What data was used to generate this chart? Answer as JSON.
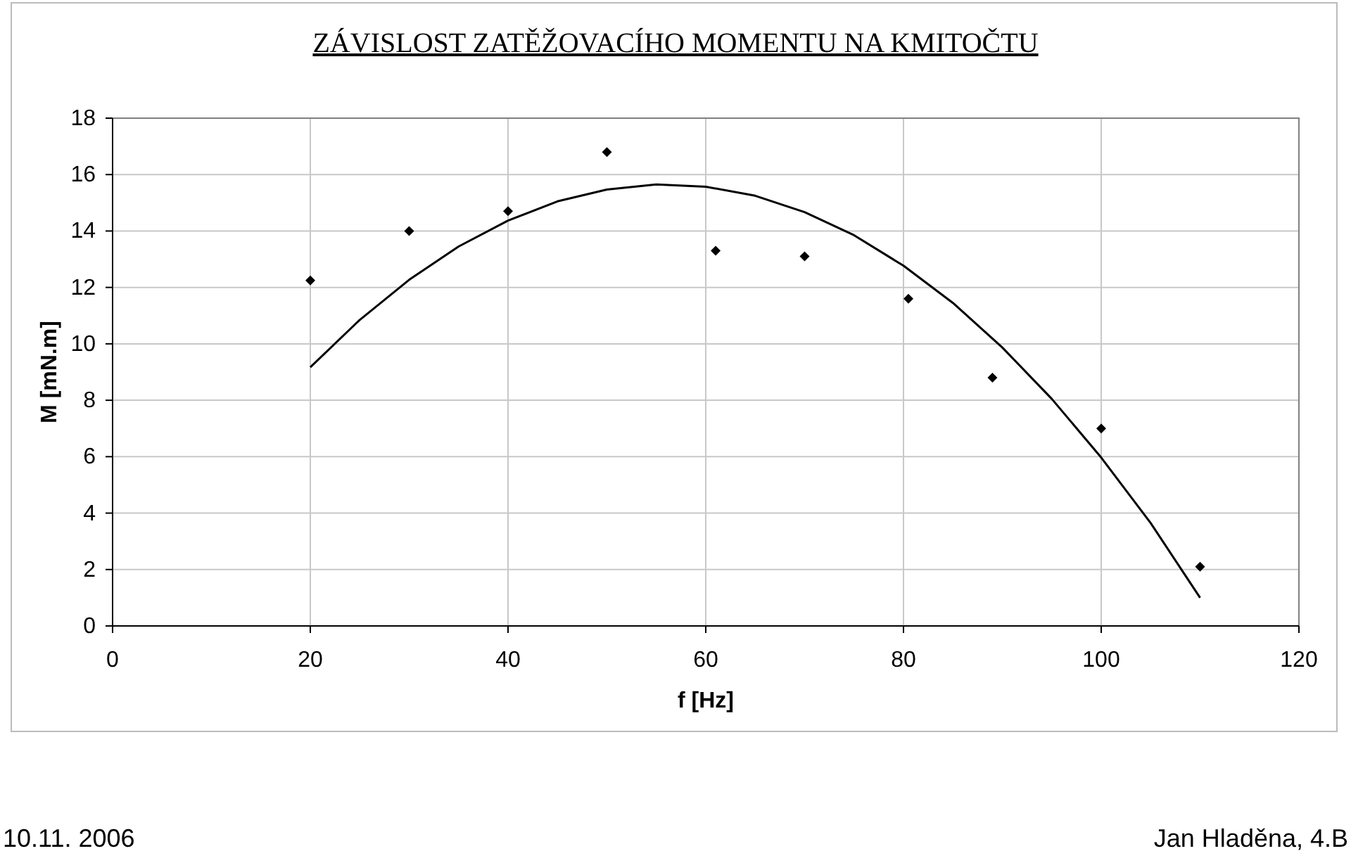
{
  "chart_data": {
    "type": "scatter",
    "title": "ZÁVISLOST ZATĚŽOVACÍHO MOMENTU NA KMITOČTU",
    "xlabel": "f [Hz]",
    "ylabel": "M [mN.m]",
    "xlim": [
      0,
      120
    ],
    "xticks": [
      0,
      20,
      40,
      60,
      80,
      100,
      120
    ],
    "ylim": [
      0,
      18
    ],
    "yticks": [
      0,
      2,
      4,
      6,
      8,
      10,
      12,
      14,
      16,
      18
    ],
    "grid": true,
    "series": [
      {
        "color": "#000000",
        "marker": "diamond",
        "x": [
          20,
          30,
          40,
          50,
          61,
          70,
          80.5,
          89,
          100,
          110
        ],
        "values": [
          12.25,
          14,
          14.7,
          16.8,
          13.3,
          13.1,
          11.6,
          8.8,
          7,
          2.1
        ]
      },
      {
        "type": "line",
        "color": "#000000",
        "marker": "none",
        "line_style": "solid",
        "x": [
          20,
          25,
          30,
          35,
          40,
          45,
          50,
          55,
          60,
          65,
          70,
          75,
          80,
          85,
          90,
          95,
          100,
          105,
          110
        ],
        "values": [
          9.17,
          10.85,
          12.27,
          13.45,
          14.37,
          15.05,
          15.47,
          15.65,
          15.57,
          15.25,
          14.67,
          13.85,
          12.77,
          11.45,
          9.87,
          8.05,
          5.97,
          3.65,
          1.0
        ]
      }
    ],
    "annotations": [
      "10.11. 2006",
      "Jan Hladěna, 4.B"
    ]
  }
}
